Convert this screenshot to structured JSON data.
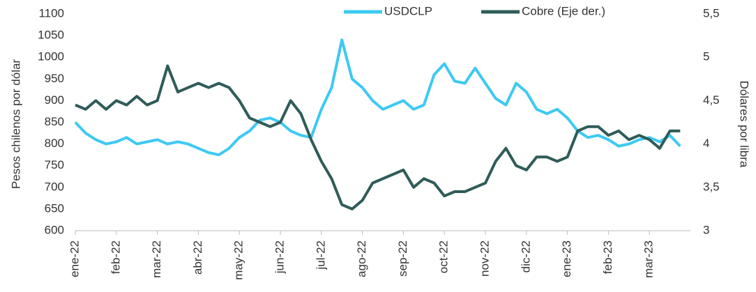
{
  "chart_data": {
    "type": "line",
    "categories": [
      "ene-22",
      null,
      null,
      null,
      "feb-22",
      null,
      null,
      null,
      "mar-22",
      null,
      null,
      null,
      "abr-22",
      null,
      null,
      null,
      "may-22",
      null,
      null,
      null,
      "jun-22",
      null,
      null,
      null,
      "jul-22",
      null,
      null,
      null,
      "ago-22",
      null,
      null,
      null,
      "sep-22",
      null,
      null,
      null,
      "oct-22",
      null,
      null,
      null,
      "nov-22",
      null,
      null,
      null,
      "dic-22",
      null,
      null,
      null,
      "ene-23",
      null,
      null,
      null,
      "feb-23",
      null,
      null,
      null,
      "mar-23",
      null,
      null,
      null
    ],
    "series": [
      {
        "name": "USDCLP",
        "color": "#3ec9f2",
        "values": [
          850,
          825,
          810,
          800,
          805,
          815,
          800,
          805,
          810,
          800,
          805,
          800,
          790,
          780,
          775,
          790,
          815,
          830,
          855,
          860,
          850,
          830,
          820,
          815,
          880,
          930,
          1040,
          950,
          930,
          900,
          880,
          890,
          900,
          880,
          890,
          960,
          985,
          945,
          940,
          975,
          940,
          905,
          890,
          940,
          920,
          880,
          870,
          880,
          860,
          830,
          815,
          820,
          810,
          795,
          800,
          810,
          815,
          805,
          820,
          795
        ]
      },
      {
        "name": "Cobre (Eje der.)",
        "color": "#2f5c58",
        "axis": "y2",
        "values": [
          4.45,
          4.4,
          4.5,
          4.4,
          4.5,
          4.45,
          4.55,
          4.45,
          4.5,
          4.9,
          4.6,
          4.65,
          4.7,
          4.65,
          4.7,
          4.65,
          4.5,
          4.3,
          4.25,
          4.2,
          4.25,
          4.5,
          4.35,
          4.05,
          3.8,
          3.6,
          3.3,
          3.25,
          3.35,
          3.55,
          3.6,
          3.65,
          3.7,
          3.5,
          3.6,
          3.55,
          3.4,
          3.45,
          3.45,
          3.5,
          3.55,
          3.8,
          3.95,
          3.75,
          3.7,
          3.85,
          3.85,
          3.8,
          3.85,
          4.15,
          4.2,
          4.2,
          4.1,
          4.15,
          4.05,
          4.1,
          4.05,
          3.95,
          4.15,
          4.15
        ]
      }
    ],
    "ylabel": "Pesos chilenos por dólar",
    "y2label": "Dólares por libra",
    "ylim": [
      600,
      1100
    ],
    "yticks": [
      600,
      650,
      700,
      750,
      800,
      850,
      900,
      950,
      1000,
      1050,
      1100
    ],
    "y2lim": [
      3,
      5.5
    ],
    "y2ticks": [
      3,
      {
        "value": 3.5,
        "label": "3,5"
      },
      4,
      {
        "value": 4.5,
        "label": "4,5"
      },
      5,
      {
        "value": 5.5,
        "label": "5,5"
      }
    ],
    "legend": "top"
  }
}
